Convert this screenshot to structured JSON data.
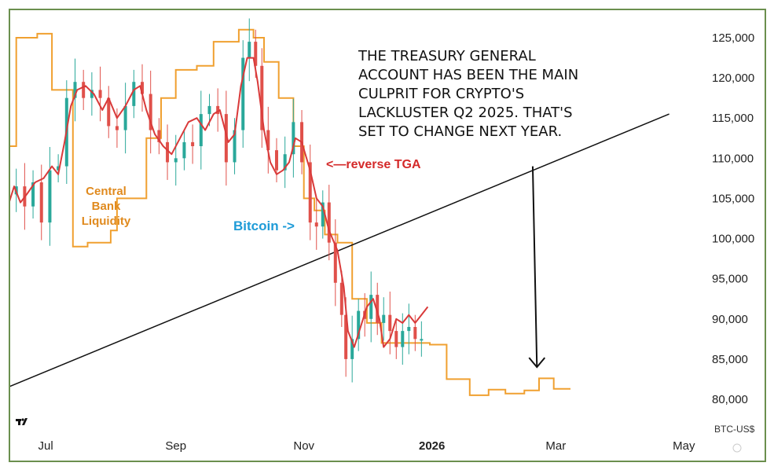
{
  "chart_data": {
    "type": "line",
    "title": "",
    "xlabel": "",
    "ylabel": "",
    "ylim": [
      77500,
      128000
    ],
    "y_ticks": [
      "125,000",
      "120,000",
      "115,000",
      "110,000",
      "105,000",
      "100,000",
      "95,000",
      "90,000",
      "85,000",
      "80,000"
    ],
    "y_tick_values": [
      125000,
      120000,
      115000,
      110000,
      105000,
      100000,
      95000,
      90000,
      85000,
      80000
    ],
    "x_ticks": [
      "Jul",
      "Sep",
      "Nov",
      "2026",
      "Mar",
      "May"
    ],
    "x_tick_dates": [
      "2025-07-01",
      "2025-09-01",
      "2025-11-01",
      "2026-01-01",
      "2026-03-01",
      "2026-05-01"
    ],
    "bold_x_tick": "2026",
    "symbol": "BTC-US$",
    "annotation": "THE TREASURY GENERAL ACCOUNT HAS BEEN THE MAIN CULPRIT FOR CRYPTO'S LACKLUSTER Q2 2025. THAT'S SET TO CHANGE NEXT YEAR.",
    "annotation_lines": [
      "THE TREASURY GENERAL",
      "ACCOUNT HAS BEEN THE MAIN",
      "CULPRIT FOR CRYPTO'S",
      "LACKLUSTER Q2 2025. THAT'S",
      "SET TO CHANGE NEXT YEAR."
    ],
    "series_labels": {
      "liquidity": [
        "Central",
        "Bank",
        "Liquidity"
      ],
      "tga": "<—reverse TGA",
      "bitcoin": "Bitcoin ->"
    },
    "colors": {
      "liquidity": "#f0a030",
      "tga": "#d93a3a",
      "candle_up": "#2aa89a",
      "candle_down": "#e0504a",
      "trendline": "#111111",
      "label_liquidity": "#e08a1e",
      "label_tga": "#d42a2a",
      "label_bitcoin": "#1e9bd7",
      "frame": "#6b8f4e"
    },
    "series": [
      {
        "name": "Central Bank Liquidity",
        "type": "step",
        "points": [
          [
            "2025-06-13",
            111500
          ],
          [
            "2025-06-17",
            111500
          ],
          [
            "2025-06-17",
            125000
          ],
          [
            "2025-06-27",
            125000
          ],
          [
            "2025-06-27",
            125500
          ],
          [
            "2025-07-04",
            125500
          ],
          [
            "2025-07-04",
            118500
          ],
          [
            "2025-07-14",
            118500
          ],
          [
            "2025-07-14",
            99000
          ],
          [
            "2025-07-21",
            99000
          ],
          [
            "2025-07-21",
            99500
          ],
          [
            "2025-08-01",
            99500
          ],
          [
            "2025-08-01",
            101000
          ],
          [
            "2025-08-04",
            101000
          ],
          [
            "2025-08-04",
            105000
          ],
          [
            "2025-08-18",
            105000
          ],
          [
            "2025-08-18",
            112500
          ],
          [
            "2025-08-25",
            112500
          ],
          [
            "2025-08-25",
            117500
          ],
          [
            "2025-09-01",
            117500
          ],
          [
            "2025-09-01",
            121000
          ],
          [
            "2025-09-11",
            121000
          ],
          [
            "2025-09-11",
            121500
          ],
          [
            "2025-09-19",
            121500
          ],
          [
            "2025-09-19",
            124500
          ],
          [
            "2025-10-01",
            124500
          ],
          [
            "2025-10-01",
            126000
          ],
          [
            "2025-10-08",
            126000
          ],
          [
            "2025-10-08",
            125000
          ],
          [
            "2025-10-13",
            125000
          ],
          [
            "2025-10-13",
            122000
          ],
          [
            "2025-10-20",
            122000
          ],
          [
            "2025-10-20",
            117500
          ],
          [
            "2025-10-27",
            117500
          ],
          [
            "2025-10-27",
            111500
          ],
          [
            "2025-11-01",
            111500
          ],
          [
            "2025-11-01",
            105000
          ],
          [
            "2025-11-06",
            105000
          ],
          [
            "2025-11-06",
            103500
          ],
          [
            "2025-11-11",
            103500
          ],
          [
            "2025-11-11",
            100500
          ],
          [
            "2025-11-17",
            100500
          ],
          [
            "2025-11-17",
            99500
          ],
          [
            "2025-11-24",
            99500
          ],
          [
            "2025-11-24",
            92500
          ],
          [
            "2025-12-01",
            92500
          ],
          [
            "2025-12-01",
            89500
          ],
          [
            "2025-12-08",
            89500
          ],
          [
            "2025-12-08",
            87000
          ],
          [
            "2025-12-15",
            87000
          ],
          [
            "2025-12-31",
            87000
          ],
          [
            "2025-12-31",
            86800
          ],
          [
            "2026-01-08",
            86800
          ],
          [
            "2026-01-08",
            82500
          ],
          [
            "2026-01-19",
            82500
          ],
          [
            "2026-01-19",
            80500
          ],
          [
            "2026-01-28",
            80500
          ],
          [
            "2026-01-28",
            81200
          ],
          [
            "2026-02-05",
            81200
          ],
          [
            "2026-02-05",
            80700
          ],
          [
            "2026-02-14",
            80700
          ],
          [
            "2026-02-14",
            81100
          ],
          [
            "2026-02-21",
            81100
          ],
          [
            "2026-02-21",
            82600
          ],
          [
            "2026-02-28",
            82600
          ],
          [
            "2026-02-28",
            81300
          ],
          [
            "2026-03-08",
            81300
          ]
        ]
      },
      {
        "name": "reverse TGA",
        "type": "line",
        "points": [
          [
            "2025-06-13",
            104000
          ],
          [
            "2025-06-16",
            106500
          ],
          [
            "2025-06-19",
            104500
          ],
          [
            "2025-06-22",
            105500
          ],
          [
            "2025-06-26",
            107000
          ],
          [
            "2025-06-30",
            107500
          ],
          [
            "2025-07-04",
            109000
          ],
          [
            "2025-07-07",
            108000
          ],
          [
            "2025-07-10",
            112000
          ],
          [
            "2025-07-13",
            116500
          ],
          [
            "2025-07-16",
            118500
          ],
          [
            "2025-07-20",
            119000
          ],
          [
            "2025-07-24",
            118000
          ],
          [
            "2025-07-28",
            116000
          ],
          [
            "2025-07-31",
            117500
          ],
          [
            "2025-08-04",
            115000
          ],
          [
            "2025-08-08",
            116500
          ],
          [
            "2025-08-12",
            118500
          ],
          [
            "2025-08-15",
            119000
          ],
          [
            "2025-08-18",
            116000
          ],
          [
            "2025-08-22",
            113000
          ],
          [
            "2025-08-26",
            111500
          ],
          [
            "2025-08-30",
            110500
          ],
          [
            "2025-09-03",
            112500
          ],
          [
            "2025-09-07",
            114500
          ],
          [
            "2025-09-11",
            115000
          ],
          [
            "2025-09-15",
            113500
          ],
          [
            "2025-09-19",
            115500
          ],
          [
            "2025-09-22",
            116000
          ],
          [
            "2025-09-26",
            112000
          ],
          [
            "2025-09-29",
            113000
          ],
          [
            "2025-10-02",
            119000
          ],
          [
            "2025-10-05",
            122500
          ],
          [
            "2025-10-08",
            122500
          ],
          [
            "2025-10-10",
            119500
          ],
          [
            "2025-10-13",
            113500
          ],
          [
            "2025-10-16",
            109500
          ],
          [
            "2025-10-19",
            108000
          ],
          [
            "2025-10-22",
            108500
          ],
          [
            "2025-10-25",
            109500
          ],
          [
            "2025-10-28",
            112500
          ],
          [
            "2025-10-31",
            112000
          ],
          [
            "2025-11-04",
            108500
          ],
          [
            "2025-11-07",
            105000
          ],
          [
            "2025-11-10",
            104000
          ],
          [
            "2025-11-13",
            101000
          ],
          [
            "2025-11-17",
            98500
          ],
          [
            "2025-11-20",
            94000
          ],
          [
            "2025-11-22",
            88500
          ],
          [
            "2025-11-25",
            86500
          ],
          [
            "2025-11-28",
            89000
          ],
          [
            "2025-12-01",
            91500
          ],
          [
            "2025-12-04",
            92500
          ],
          [
            "2025-12-07",
            90000
          ],
          [
            "2025-12-09",
            86500
          ],
          [
            "2025-12-12",
            87500
          ],
          [
            "2025-12-15",
            90000
          ],
          [
            "2025-12-18",
            89500
          ],
          [
            "2025-12-21",
            90500
          ],
          [
            "2025-12-24",
            89500
          ],
          [
            "2025-12-27",
            90500
          ],
          [
            "2025-12-30",
            91500
          ]
        ]
      },
      {
        "name": "Bitcoin",
        "type": "candlestick",
        "points": [
          [
            "2025-06-13",
            105500
          ],
          [
            "2025-06-17",
            106500
          ],
          [
            "2025-06-21",
            104000
          ],
          [
            "2025-06-25",
            107000
          ],
          [
            "2025-06-29",
            102000
          ],
          [
            "2025-07-03",
            108500
          ],
          [
            "2025-07-07",
            109000
          ],
          [
            "2025-07-11",
            117500
          ],
          [
            "2025-07-15",
            119500
          ],
          [
            "2025-07-19",
            117500
          ],
          [
            "2025-07-23",
            118500
          ],
          [
            "2025-07-27",
            117500
          ],
          [
            "2025-07-31",
            114000
          ],
          [
            "2025-08-04",
            113500
          ],
          [
            "2025-08-08",
            116500
          ],
          [
            "2025-08-12",
            119500
          ],
          [
            "2025-08-16",
            118000
          ],
          [
            "2025-08-20",
            113500
          ],
          [
            "2025-08-24",
            112000
          ],
          [
            "2025-08-28",
            109500
          ],
          [
            "2025-09-01",
            110000
          ],
          [
            "2025-09-05",
            112000
          ],
          [
            "2025-09-09",
            111500
          ],
          [
            "2025-09-13",
            115500
          ],
          [
            "2025-09-17",
            116500
          ],
          [
            "2025-09-21",
            115500
          ],
          [
            "2025-09-25",
            109500
          ],
          [
            "2025-09-29",
            113500
          ],
          [
            "2025-10-03",
            122500
          ],
          [
            "2025-10-06",
            124500
          ],
          [
            "2025-10-09",
            121500
          ],
          [
            "2025-10-12",
            113500
          ],
          [
            "2025-10-15",
            111000
          ],
          [
            "2025-10-19",
            108500
          ],
          [
            "2025-10-23",
            110500
          ],
          [
            "2025-10-27",
            114500
          ],
          [
            "2025-10-31",
            109500
          ],
          [
            "2025-11-04",
            102000
          ],
          [
            "2025-11-07",
            101500
          ],
          [
            "2025-11-10",
            104500
          ],
          [
            "2025-11-13",
            99500
          ],
          [
            "2025-11-16",
            94500
          ],
          [
            "2025-11-19",
            90500
          ],
          [
            "2025-11-21",
            85000
          ],
          [
            "2025-11-24",
            87500
          ],
          [
            "2025-11-27",
            91000
          ],
          [
            "2025-11-30",
            90000
          ],
          [
            "2025-12-03",
            93000
          ],
          [
            "2025-12-06",
            89500
          ],
          [
            "2025-12-09",
            90500
          ],
          [
            "2025-12-12",
            88500
          ],
          [
            "2025-12-15",
            86500
          ],
          [
            "2025-12-18",
            88500
          ],
          [
            "2025-12-21",
            89000
          ],
          [
            "2025-12-24",
            87500
          ],
          [
            "2025-12-27",
            87500
          ]
        ]
      }
    ],
    "trendline": [
      [
        "2025-06-13",
        81500
      ],
      [
        "2026-04-24",
        115500
      ]
    ],
    "arrow": [
      [
        "2026-02-18",
        109000
      ],
      [
        "2026-02-20",
        84000
      ]
    ]
  }
}
